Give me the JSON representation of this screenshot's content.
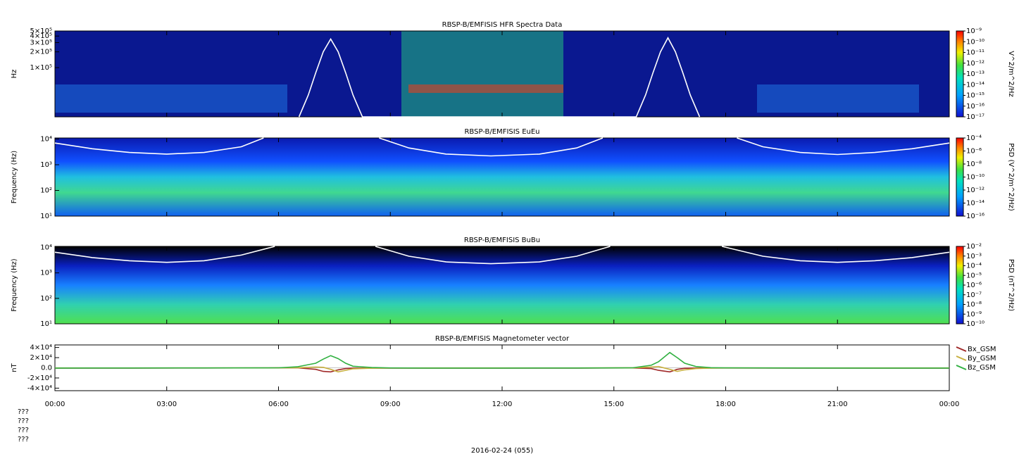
{
  "chart_data": [
    {
      "type": "spectrogram",
      "title": "RBSP-B/EMFISIS  HFR Spectra Data",
      "ylabel": "Hz",
      "yscale": "log",
      "xlim": [
        0,
        24
      ],
      "ylim": [
        11500,
        500000
      ],
      "yticks": [
        {
          "value": 100000,
          "label": "1×10⁵"
        },
        {
          "value": 200000,
          "label": "2×10⁵"
        },
        {
          "value": 300000,
          "label": "3×10⁵"
        },
        {
          "value": 400000,
          "label": "4×10⁵"
        },
        {
          "value": 500000,
          "label": "5×10⁵"
        }
      ],
      "zlim": [
        1e-17,
        1e-09
      ],
      "zlabel": "V^2/m^2/Hz",
      "zticks": [
        {
          "value": 1e-09,
          "label": "10⁻⁹"
        },
        {
          "value": 1e-10,
          "label": "10⁻¹⁰"
        },
        {
          "value": 1e-11,
          "label": "10⁻¹¹"
        },
        {
          "value": 1e-12,
          "label": "10⁻¹²"
        },
        {
          "value": 1e-13,
          "label": "10⁻¹³"
        },
        {
          "value": 1e-14,
          "label": "10⁻¹⁴"
        },
        {
          "value": 1e-15,
          "label": "10⁻¹⁵"
        },
        {
          "value": 1e-16,
          "label": "10⁻¹⁶"
        },
        {
          "value": 1e-17,
          "label": "10⁻¹⁷"
        }
      ],
      "series": [
        {
          "color": "#ffffff",
          "x": [
            6.55,
            6.8,
            7.0,
            7.2,
            7.4,
            7.6,
            7.8,
            8.0,
            8.25,
            15.6,
            15.85,
            16.05,
            16.25,
            16.45,
            16.65,
            16.85,
            17.05,
            17.3
          ],
          "values": [
            11500,
            30000,
            80000,
            200000,
            350000,
            200000,
            80000,
            30000,
            11500,
            11500,
            30000,
            80000,
            200000,
            370000,
            200000,
            80000,
            30000,
            11500
          ]
        }
      ]
    },
    {
      "type": "spectrogram",
      "title": "RBSP-B/EMFISIS  EuEu",
      "ylabel": "Frequency (Hz)",
      "yscale": "log",
      "xlim": [
        0,
        24
      ],
      "ylim": [
        10,
        11000
      ],
      "yticks": [
        {
          "value": 10,
          "label": "10¹"
        },
        {
          "value": 100,
          "label": "10²"
        },
        {
          "value": 1000,
          "label": "10³"
        },
        {
          "value": 10000,
          "label": "10⁴"
        }
      ],
      "zlim": [
        1e-16,
        0.0001
      ],
      "zlabel": "PSD (V^2/m^2/Hz)",
      "zticks": [
        {
          "value": 0.0001,
          "label": "10⁻⁴"
        },
        {
          "value": 1e-06,
          "label": "10⁻⁶"
        },
        {
          "value": 1e-08,
          "label": "10⁻⁸"
        },
        {
          "value": 1e-10,
          "label": "10⁻¹⁰"
        },
        {
          "value": 1e-12,
          "label": "10⁻¹²"
        },
        {
          "value": 1e-14,
          "label": "10⁻¹⁴"
        },
        {
          "value": 1e-16,
          "label": "10⁻¹⁶"
        }
      ],
      "series": [
        {
          "color": "#ffffff",
          "x": [
            0,
            1,
            2,
            3,
            4,
            5,
            5.6,
            7,
            8.7,
            9.5,
            10.5,
            11.7,
            13,
            14,
            14.7,
            16,
            18.3,
            19,
            20,
            21,
            22,
            23,
            24
          ],
          "values": [
            7000,
            4200,
            3000,
            2600,
            3000,
            5000,
            11000,
            null,
            11000,
            4500,
            2600,
            2200,
            2600,
            4500,
            11000,
            null,
            11000,
            5000,
            3000,
            2500,
            3000,
            4200,
            7000
          ]
        }
      ]
    },
    {
      "type": "spectrogram",
      "title": "RBSP-B/EMFISIS  BuBu",
      "ylabel": "Frequency (Hz)",
      "yscale": "log",
      "xlim": [
        0,
        24
      ],
      "ylim": [
        10,
        11000
      ],
      "yticks": [
        {
          "value": 10,
          "label": "10¹"
        },
        {
          "value": 100,
          "label": "10²"
        },
        {
          "value": 1000,
          "label": "10³"
        },
        {
          "value": 10000,
          "label": "10⁴"
        }
      ],
      "zlim": [
        1e-10,
        0.01
      ],
      "zlabel": "PSD (nT^2/Hz)",
      "zticks": [
        {
          "value": 0.01,
          "label": "10⁻²"
        },
        {
          "value": 0.001,
          "label": "10⁻³"
        },
        {
          "value": 0.0001,
          "label": "10⁻⁴"
        },
        {
          "value": 1e-05,
          "label": "10⁻⁵"
        },
        {
          "value": 1e-06,
          "label": "10⁻⁶"
        },
        {
          "value": 1e-07,
          "label": "10⁻⁷"
        },
        {
          "value": 1e-08,
          "label": "10⁻⁸"
        },
        {
          "value": 1e-09,
          "label": "10⁻⁹"
        },
        {
          "value": 1e-10,
          "label": "10⁻¹⁰"
        }
      ],
      "series": [
        {
          "color": "#ffffff",
          "x": [
            0,
            1,
            2,
            3,
            4,
            5,
            5.9,
            7,
            8.6,
            9.5,
            10.5,
            11.7,
            13,
            14,
            14.9,
            16,
            17.9,
            19,
            20,
            21,
            22,
            23,
            24
          ],
          "values": [
            6500,
            4000,
            3000,
            2600,
            3000,
            5000,
            11000,
            null,
            11000,
            4500,
            2700,
            2300,
            2700,
            4500,
            11000,
            null,
            11000,
            4500,
            3000,
            2600,
            3000,
            4000,
            6500
          ]
        }
      ]
    },
    {
      "type": "line",
      "title": "RBSP-B/EMFISIS  Magnetometer vector",
      "ylabel": "nT",
      "xlim": [
        0,
        24
      ],
      "ylim": [
        -45000,
        45000
      ],
      "yticks": [
        {
          "value": -40000,
          "label": "-4×10⁴"
        },
        {
          "value": -20000,
          "label": "-2×10⁴"
        },
        {
          "value": 0,
          "label": "0.0"
        },
        {
          "value": 20000,
          "label": "2×10⁴"
        },
        {
          "value": 40000,
          "label": "4×10⁴"
        }
      ],
      "xticks": [
        {
          "value": 0,
          "label": "00:00"
        },
        {
          "value": 3,
          "label": "03:00"
        },
        {
          "value": 6,
          "label": "06:00"
        },
        {
          "value": 9,
          "label": "09:00"
        },
        {
          "value": 12,
          "label": "12:00"
        },
        {
          "value": 15,
          "label": "15:00"
        },
        {
          "value": 18,
          "label": "18:00"
        },
        {
          "value": 21,
          "label": "21:00"
        },
        {
          "value": 24,
          "label": "00:00"
        }
      ],
      "xlabel": "2016-02-24 (055)",
      "annotations": [
        "???",
        "???",
        "???",
        "???"
      ],
      "x": [
        0,
        2,
        4,
        6,
        6.5,
        7,
        7.2,
        7.4,
        7.6,
        7.8,
        8,
        8.5,
        9,
        10,
        12,
        14,
        15.5,
        16,
        16.2,
        16.5,
        16.7,
        16.9,
        17.2,
        17.6,
        18,
        20,
        22,
        24
      ],
      "series": [
        {
          "name": "Bx_GSM",
          "color": "#a02828",
          "values": [
            -500,
            -500,
            -400,
            -200,
            0,
            -3000,
            -7000,
            -8000,
            -4000,
            -1500,
            -800,
            -500,
            -500,
            -500,
            -500,
            -500,
            -300,
            -1500,
            -5000,
            -8000,
            -3000,
            -1000,
            -500,
            -400,
            -400,
            -500,
            -500,
            -500
          ]
        },
        {
          "name": "By_GSM",
          "color": "#c8b040",
          "values": [
            -300,
            -300,
            -300,
            -200,
            200,
            1500,
            1000,
            -3000,
            -8000,
            -5000,
            -2000,
            -800,
            -400,
            -300,
            -300,
            -300,
            -200,
            1500,
            2500,
            -3000,
            -7000,
            -4000,
            -1500,
            -500,
            -300,
            -300,
            -300,
            -300
          ]
        },
        {
          "name": "Bz_GSM",
          "color": "#30b040",
          "values": [
            -500,
            -400,
            -300,
            0,
            2000,
            9000,
            17000,
            24000,
            18000,
            9000,
            3000,
            500,
            -300,
            -500,
            -500,
            -400,
            0,
            5000,
            12000,
            30000,
            20000,
            9000,
            2500,
            300,
            -200,
            -400,
            -500,
            -500
          ]
        }
      ]
    }
  ]
}
